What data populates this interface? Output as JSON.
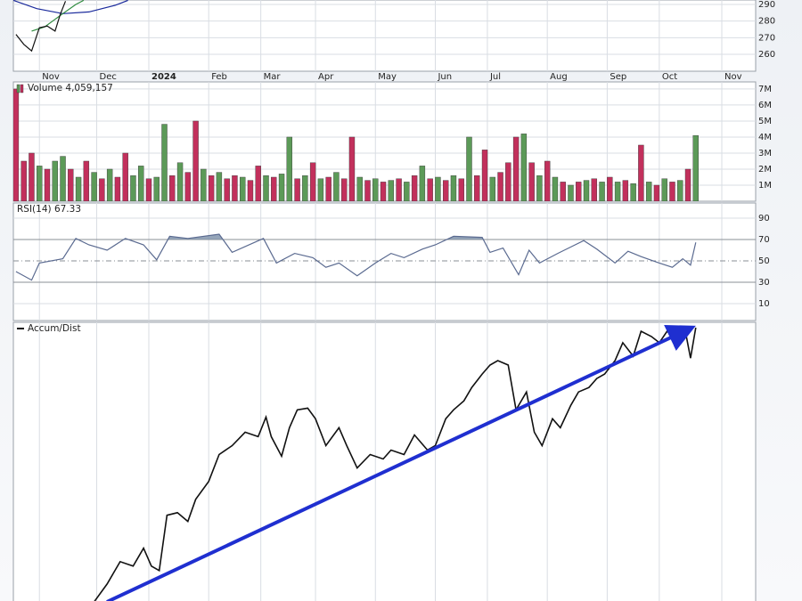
{
  "chart_data": [
    {
      "type": "line",
      "xlim": [
        0,
        285
      ],
      "xticks": [
        {
          "value": 10,
          "label": "Nov"
        },
        {
          "value": 32,
          "label": "Dec"
        },
        {
          "value": 52,
          "label": "2024"
        },
        {
          "value": 75,
          "label": "Feb"
        },
        {
          "value": 95,
          "label": "Mar"
        },
        {
          "value": 116,
          "label": "Apr"
        },
        {
          "value": 139,
          "label": "May"
        },
        {
          "value": 162,
          "label": "Jun"
        },
        {
          "value": 182,
          "label": "Jul"
        },
        {
          "value": 205,
          "label": "Aug"
        },
        {
          "value": 228,
          "label": "Sep"
        },
        {
          "value": 248,
          "label": "Oct"
        },
        {
          "value": 272,
          "label": "Nov"
        }
      ],
      "ylim": [
        249.8,
        292.7
      ],
      "yticks": [
        260,
        270,
        280,
        290
      ],
      "grid": true,
      "series": [
        {
          "color": "#1a2a9c",
          "x": [
            0,
            9,
            19,
            29,
            39,
            44
          ],
          "values": [
            292.5,
            287.5,
            284.5,
            285.5,
            289.5,
            292.5
          ]
        },
        {
          "color": "#2e8b3e",
          "x": [
            7,
            12,
            19,
            24,
            27
          ],
          "values": [
            274,
            276.5,
            284.5,
            290,
            292.5
          ]
        },
        {
          "color": "#111111",
          "x": [
            1,
            4,
            7,
            10,
            13,
            16,
            18,
            20
          ],
          "values": [
            272,
            266,
            262,
            276,
            277,
            274,
            284,
            292
          ]
        }
      ]
    },
    {
      "type": "bar",
      "title": "Volume 4,059,157",
      "xlim": [
        0,
        285
      ],
      "ylim": [
        0,
        7.44
      ],
      "yticks": [
        {
          "value": 1,
          "label": "1M"
        },
        {
          "value": 2,
          "label": "2M"
        },
        {
          "value": 3,
          "label": "3M"
        },
        {
          "value": 4,
          "label": "4M"
        },
        {
          "value": 5,
          "label": "5M"
        },
        {
          "value": 6,
          "label": "6M"
        },
        {
          "value": 7,
          "label": "7M"
        }
      ],
      "up_color": "#5c9a58",
      "down_color": "#c2305c",
      "x": [
        1,
        4,
        7,
        10,
        13,
        16,
        19,
        22,
        25,
        28,
        31,
        34,
        37,
        40,
        43,
        46,
        49,
        52,
        55,
        58,
        61,
        64,
        67,
        70,
        73,
        76,
        79,
        82,
        85,
        88,
        91,
        94,
        97,
        100,
        103,
        106,
        109,
        112,
        115,
        118,
        121,
        124,
        127,
        130,
        133,
        136,
        139,
        142,
        145,
        148,
        151,
        154,
        157,
        160,
        163,
        166,
        169,
        172,
        175,
        178,
        181,
        184,
        187,
        190,
        193,
        196,
        199,
        202,
        205,
        208,
        211,
        214,
        217,
        220,
        223,
        226,
        229,
        232,
        235,
        238,
        241,
        244,
        247,
        250,
        253,
        256,
        259,
        262
      ],
      "values": [
        7.0,
        2.5,
        3.0,
        2.2,
        2.0,
        2.5,
        2.8,
        2.0,
        1.5,
        2.5,
        1.8,
        1.4,
        2.0,
        1.5,
        3.0,
        1.6,
        2.2,
        1.4,
        1.5,
        4.8,
        1.6,
        2.4,
        1.8,
        5.0,
        2.0,
        1.6,
        1.8,
        1.4,
        1.6,
        1.5,
        1.3,
        2.2,
        1.6,
        1.5,
        1.7,
        4.0,
        1.4,
        1.6,
        2.4,
        1.4,
        1.5,
        1.8,
        1.4,
        4.0,
        1.5,
        1.3,
        1.4,
        1.2,
        1.3,
        1.4,
        1.2,
        1.6,
        2.2,
        1.4,
        1.5,
        1.3,
        1.6,
        1.4,
        4.0,
        1.6,
        3.2,
        1.5,
        1.8,
        2.4,
        4.0,
        4.2,
        2.4,
        1.6,
        2.5,
        1.5,
        1.2,
        1.0,
        1.2,
        1.3,
        1.4,
        1.2,
        1.5,
        1.2,
        1.3,
        1.1,
        3.5,
        1.2,
        1.0,
        1.4,
        1.2,
        1.3,
        2.0,
        4.1
      ],
      "up": [
        0,
        0,
        0,
        1,
        0,
        1,
        1,
        0,
        1,
        0,
        1,
        0,
        1,
        0,
        0,
        1,
        1,
        0,
        1,
        1,
        0,
        1,
        0,
        0,
        1,
        0,
        1,
        0,
        0,
        1,
        0,
        0,
        1,
        0,
        1,
        1,
        0,
        1,
        0,
        1,
        0,
        1,
        0,
        0,
        1,
        0,
        1,
        0,
        1,
        0,
        1,
        0,
        1,
        0,
        1,
        0,
        1,
        0,
        1,
        0,
        0,
        1,
        0,
        0,
        0,
        1,
        0,
        1,
        0,
        1,
        0,
        1,
        0,
        1,
        0,
        1,
        0,
        1,
        0,
        1,
        0,
        1,
        0,
        1,
        0,
        1,
        0,
        1
      ]
    },
    {
      "type": "line",
      "title": "RSI(14) 67.33",
      "xlim": [
        0,
        285
      ],
      "ylim": [
        -5.8,
        104.2
      ],
      "yticks": [
        10,
        30,
        50,
        70,
        90
      ],
      "fill_above": 70,
      "color": "#5a6a90",
      "fill_color": "#7b8fa8",
      "x": [
        1,
        7,
        10,
        19,
        24,
        29,
        36,
        43,
        50,
        55,
        60,
        67,
        79,
        84,
        96,
        101,
        108,
        115,
        120,
        125,
        132,
        139,
        145,
        150,
        157,
        162,
        169,
        180,
        183,
        188,
        194,
        198,
        202,
        209,
        219,
        224,
        231,
        236,
        241,
        248,
        253,
        257,
        260,
        262
      ],
      "values": [
        40,
        32,
        48,
        52,
        71,
        65,
        60,
        71,
        65,
        51,
        73,
        71,
        75,
        58,
        71,
        48,
        57,
        53,
        44,
        48,
        36,
        48,
        57,
        53,
        61,
        65,
        73,
        72,
        58,
        62,
        37,
        60,
        48,
        57,
        69,
        61,
        48,
        59,
        54,
        48,
        44,
        52,
        46,
        67.33
      ]
    },
    {
      "type": "line",
      "title": "Accum/Dist",
      "xlim": [
        0,
        285
      ],
      "ylim": [
        0,
        100
      ],
      "color": "#111111",
      "x": [
        31,
        36,
        41,
        46,
        50,
        53,
        56,
        59,
        63,
        67,
        70,
        75,
        79,
        84,
        89,
        94,
        97,
        99,
        103,
        106,
        109,
        113,
        116,
        120,
        125,
        128,
        132,
        137,
        142,
        145,
        150,
        154,
        159,
        162,
        166,
        169,
        173,
        176,
        180,
        183,
        186,
        190,
        193,
        197,
        200,
        203,
        207,
        210,
        214,
        217,
        221,
        224,
        227,
        231,
        234,
        238,
        241,
        245,
        248,
        251,
        255,
        258,
        260,
        262
      ],
      "values": [
        0,
        6.4,
        14.4,
        12.8,
        19.2,
        12.8,
        11.2,
        31,
        31.9,
        28.8,
        36.7,
        43.1,
        52.7,
        55.9,
        60.7,
        59.1,
        66.1,
        59.1,
        52.1,
        62.3,
        68.7,
        69.3,
        65.5,
        55.9,
        62.3,
        55.9,
        47.9,
        52.7,
        51.1,
        54.3,
        52.7,
        59.7,
        54.3,
        55.9,
        65.5,
        68.7,
        71.9,
        76.7,
        81.5,
        84.7,
        86.3,
        84.7,
        68.7,
        75.1,
        60.7,
        55.9,
        65.5,
        62.3,
        70.3,
        75.1,
        76.7,
        79.9,
        81.5,
        86.3,
        92.7,
        87.9,
        96.8,
        94.9,
        92.7,
        96.8,
        94.2,
        96.8,
        87.2,
        98.1
      ]
    }
  ]
}
